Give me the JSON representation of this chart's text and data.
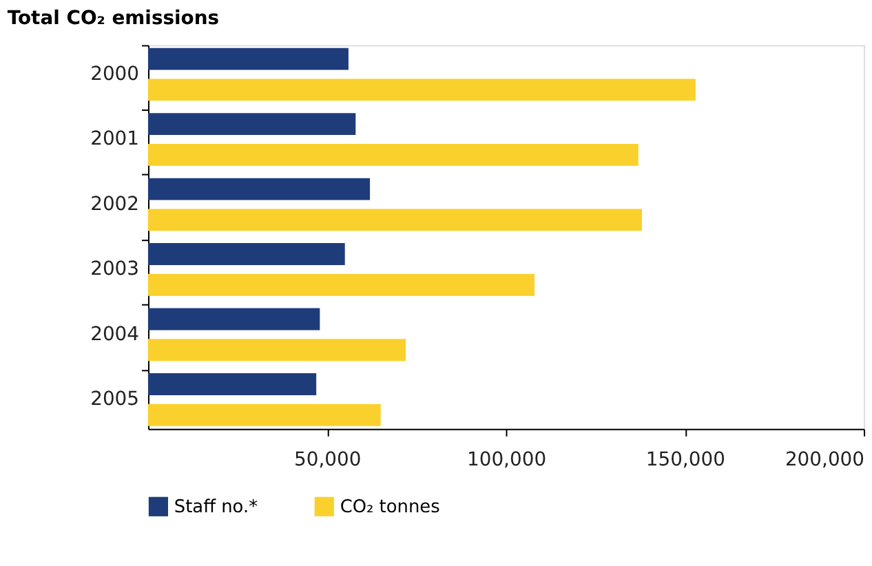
{
  "chart_data": {
    "type": "bar",
    "orientation": "horizontal",
    "title": "Total CO₂ emissions",
    "categories": [
      "2000",
      "2001",
      "2002",
      "2003",
      "2004",
      "2005"
    ],
    "series": [
      {
        "name": "Staff no.*",
        "color": "#1f3c7a",
        "values": [
          56000,
          58000,
          62000,
          55000,
          48000,
          47000
        ]
      },
      {
        "name": "CO₂ tonnes",
        "color": "#fad02c",
        "values": [
          153000,
          137000,
          138000,
          108000,
          72000,
          65000
        ]
      }
    ],
    "xlim": [
      0,
      200000
    ],
    "xticks": [
      {
        "value": 50000,
        "label": "50,000"
      },
      {
        "value": 100000,
        "label": "100,000"
      },
      {
        "value": 150000,
        "label": "150,000"
      },
      {
        "value": 200000,
        "label": "200,000"
      }
    ],
    "grid": false,
    "legend": "bottom left"
  }
}
